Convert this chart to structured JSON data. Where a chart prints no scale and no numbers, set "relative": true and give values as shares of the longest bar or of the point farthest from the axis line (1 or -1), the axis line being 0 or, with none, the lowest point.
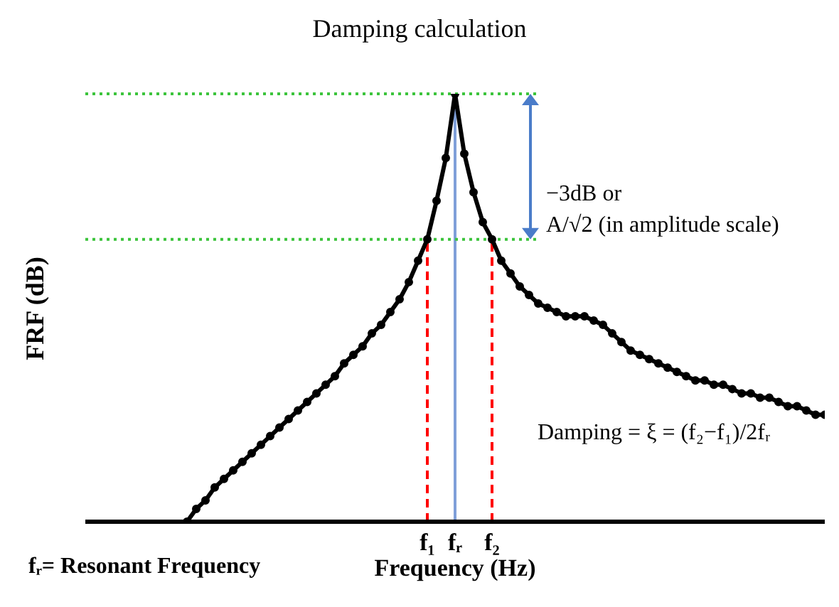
{
  "chart_data": {
    "type": "line",
    "title": "Damping calculation",
    "xlabel": "Frequency (Hz)",
    "ylabel": "FRF (dB)",
    "relative": true,
    "marker": "circle",
    "line_style": "solid",
    "grid": false,
    "legend": false,
    "categories": [
      null,
      null,
      null,
      null,
      null,
      null,
      null,
      null,
      null,
      null,
      null,
      null,
      null,
      null,
      null,
      null,
      null,
      null,
      null,
      null,
      null,
      null,
      null,
      null,
      null,
      null,
      null,
      null,
      null,
      null,
      null,
      null,
      null,
      null,
      null,
      null,
      null,
      "f₁",
      null,
      null,
      "fᵣ",
      null,
      null,
      null,
      "f₂",
      null,
      null,
      null,
      null,
      null,
      null,
      null,
      null,
      null,
      null,
      null,
      null,
      null,
      null,
      null,
      null,
      null,
      null,
      null,
      null,
      null,
      null,
      null,
      null,
      null,
      null,
      null,
      null,
      null,
      null,
      null,
      null,
      null,
      null,
      null,
      null
    ],
    "series": [
      {
        "color": "#000000",
        "values": [
          null,
          null,
          null,
          null,
          null,
          null,
          null,
          null,
          null,
          null,
          null,
          0.0,
          0.03,
          0.05,
          0.08,
          0.1,
          0.12,
          0.14,
          0.16,
          0.18,
          0.2,
          0.22,
          0.24,
          0.26,
          0.28,
          0.3,
          0.32,
          0.34,
          0.37,
          0.39,
          0.41,
          0.44,
          0.46,
          0.49,
          0.52,
          0.56,
          0.61,
          0.66,
          0.75,
          0.85,
          1,
          0.86,
          0.77,
          0.7,
          0.66,
          0.61,
          0.58,
          0.55,
          0.53,
          0.51,
          0.5,
          0.49,
          0.48,
          0.48,
          0.48,
          0.47,
          0.46,
          0.44,
          0.42,
          0.4,
          0.39,
          0.38,
          0.37,
          0.36,
          0.35,
          0.34,
          0.33,
          0.33,
          0.32,
          0.32,
          0.31,
          0.3,
          0.3,
          0.29,
          0.29,
          0.28,
          0.27,
          0.27,
          0.26,
          0.25,
          0.25
        ]
      }
    ],
    "ref_lines": [
      {
        "axis": "x",
        "value": "f₁",
        "color": "#ff0000",
        "line_style": "dashed"
      },
      {
        "axis": "x",
        "value": "fᵣ",
        "color": "#7f9fd9",
        "line_style": "solid"
      },
      {
        "axis": "x",
        "value": "f₂",
        "color": "#ff0000",
        "line_style": "dashed"
      },
      {
        "axis": "y",
        "value": 1,
        "color": "#3cc43c",
        "line_style": "dotted"
      },
      {
        "axis": "y",
        "value": 0.66,
        "color": "#3cc43c",
        "line_style": "dotted"
      }
    ],
    "annotations": [
      "−3dB or",
      "A/√2 (in amplitude scale)",
      "Damping = ξ = (f₂−f₁)/2fᵣ",
      "fᵣ= Resonant Frequency"
    ]
  }
}
